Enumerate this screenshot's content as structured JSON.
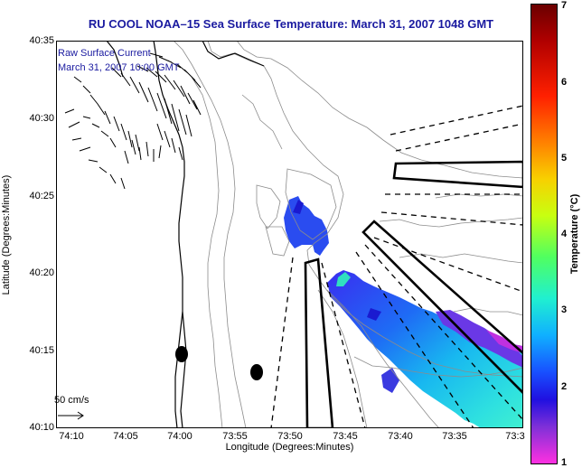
{
  "title": "RU COOL  NOAA–15  Sea Surface Temperature:  March 31, 2007 1048 GMT",
  "annotation_line1": "Raw Surface Current",
  "annotation_line2": "March 31, 2007 10:00 GMT",
  "axes": {
    "xlabel": "Longitude (Degrees:Minutes)",
    "ylabel": "Latitude (Degrees:Minutes)",
    "xticks": [
      "74:10",
      "74:05",
      "74:00",
      "73:55",
      "73:50",
      "73:45",
      "73:40",
      "73:35",
      "73:3"
    ],
    "yticks": [
      "40:35",
      "40:30",
      "40:25",
      "40:20",
      "40:15",
      "40:10"
    ]
  },
  "colorbar": {
    "label": "Temperature (°C)",
    "ticks": [
      "7",
      "6",
      "5",
      "4",
      "3",
      "2",
      "1"
    ],
    "range": [
      1,
      7
    ]
  },
  "scale_label": "50 cm/s",
  "colors": {
    "title": "#1a1aa0",
    "coastline": "#000000",
    "bathymetry": "#808080"
  }
}
